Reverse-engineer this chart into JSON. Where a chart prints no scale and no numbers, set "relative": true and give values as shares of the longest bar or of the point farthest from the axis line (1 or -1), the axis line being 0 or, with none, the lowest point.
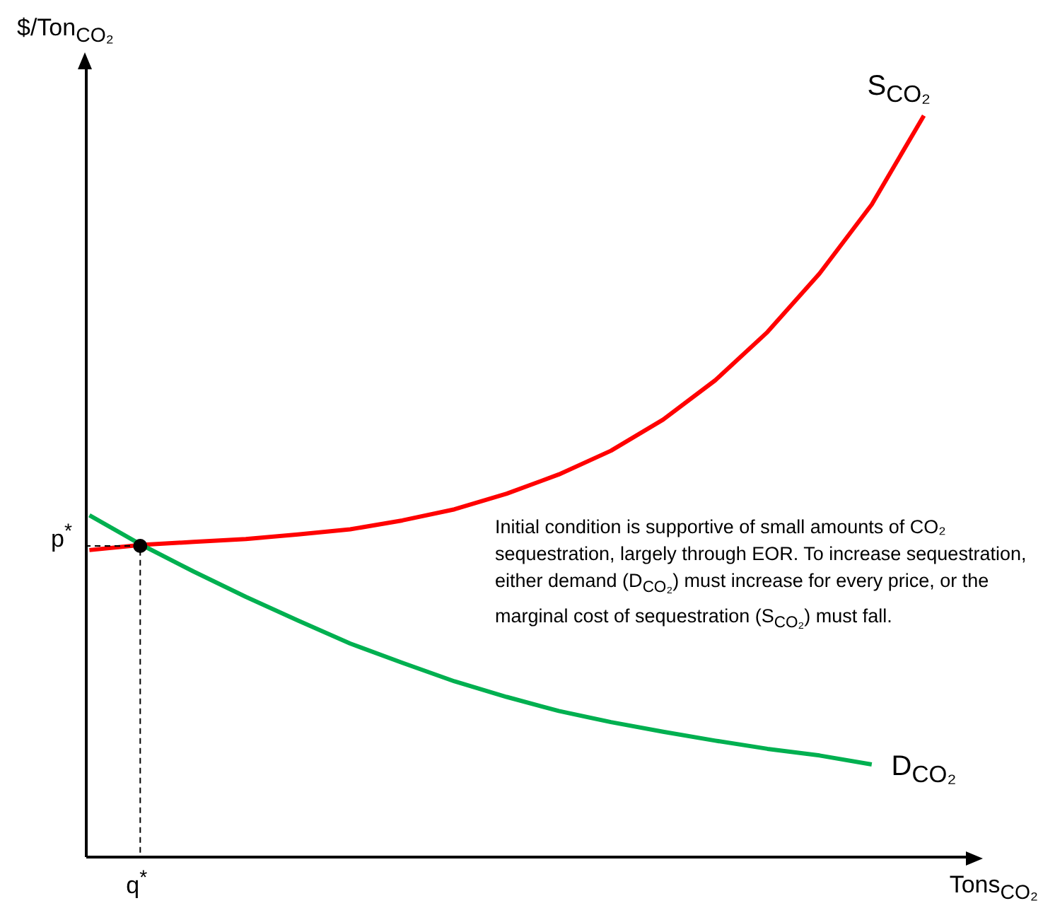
{
  "chart_data": {
    "type": "line",
    "relative": true,
    "ylabel": "$/Ton$_{CO₂}$",
    "xlabel": "Tons$_{CO₂}$",
    "categories": [
      null,
      null,
      null,
      null,
      null,
      null,
      null,
      null,
      null,
      null,
      null,
      null,
      null,
      null,
      null,
      null,
      null
    ],
    "series": [
      {
        "name": "S$_{CO₂}$",
        "color": "#ff0000",
        "values": [
          0.414,
          0.421,
          0.425,
          0.429,
          0.435,
          0.442,
          0.454,
          0.469,
          0.49,
          0.516,
          0.548,
          0.59,
          0.643,
          0.708,
          0.787,
          0.88,
          1
        ]
      },
      {
        "name": "D$_{CO₂}$",
        "color": "#00b050",
        "values": [
          0.461,
          0.421,
          0.385,
          0.351,
          0.319,
          0.288,
          0.262,
          0.237,
          0.216,
          0.197,
          0.182,
          0.169,
          0.157,
          0.146,
          0.137,
          0.125,
          null
        ]
      }
    ],
    "annotations": [
      "p$^{*}$",
      "q$^{*}$",
      "Initial condition is supportive of small amounts of CO₂ sequestration, largely through EOR.  To increase sequestration, either demand (D$_{CO₂}$) must increase for every price, or the marginal cost of sequestration (S$_{CO₂}$) must fall."
    ],
    "marker": "none",
    "line_style": "solid"
  }
}
